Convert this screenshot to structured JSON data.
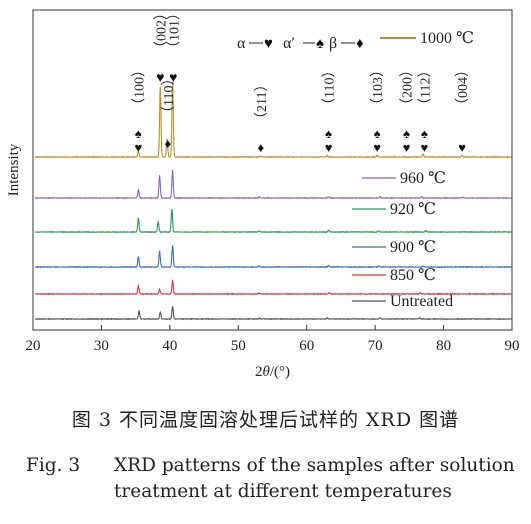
{
  "chart_data": {
    "type": "line",
    "xlabel_parts": [
      "2",
      "θ",
      "/(°)"
    ],
    "ylabel": "Intensity",
    "xlim": [
      20,
      90
    ],
    "xticks": [
      20,
      30,
      40,
      50,
      60,
      70,
      80,
      90
    ],
    "legend_symbols": [
      {
        "phase": "α",
        "marker": "♥"
      },
      {
        "phase": "α′",
        "marker": "♠"
      },
      {
        "phase": "β",
        "marker": "♦"
      }
    ],
    "series": [
      {
        "name": "Untreated",
        "color": "#555555",
        "peaks": [
          [
            35.5,
            0.35
          ],
          [
            38.6,
            0.3
          ],
          [
            40.4,
            0.55
          ],
          [
            53.1,
            0.04
          ],
          [
            63.0,
            0.05
          ],
          [
            70.7,
            0.06
          ],
          [
            76.5,
            0.04
          ]
        ]
      },
      {
        "name": "850 ℃",
        "color": "#d9363e",
        "peaks": [
          [
            35.4,
            0.35
          ],
          [
            38.5,
            0.2
          ],
          [
            40.4,
            0.6
          ],
          [
            53.0,
            0.04
          ],
          [
            63.3,
            0.06
          ],
          [
            76.6,
            0.05
          ]
        ]
      },
      {
        "name": "900 ℃",
        "color": "#3a6db5",
        "peaks": [
          [
            35.4,
            0.45
          ],
          [
            38.5,
            0.7
          ],
          [
            40.4,
            0.95
          ],
          [
            53.0,
            0.05
          ],
          [
            63.2,
            0.06
          ],
          [
            70.6,
            0.05
          ],
          [
            77.0,
            0.05
          ]
        ]
      },
      {
        "name": "920 ℃",
        "color": "#2a9a56",
        "peaks": [
          [
            35.4,
            0.6
          ],
          [
            38.3,
            0.45
          ],
          [
            40.3,
            1.0
          ],
          [
            53.0,
            0.05
          ],
          [
            63.2,
            0.07
          ],
          [
            70.5,
            0.06
          ],
          [
            77.4,
            0.07
          ]
        ]
      },
      {
        "name": "960 ℃",
        "color": "#8c64b4",
        "peaks": [
          [
            35.4,
            0.35
          ],
          [
            38.5,
            1.0
          ],
          [
            40.4,
            1.2
          ],
          [
            53.1,
            0.05
          ],
          [
            63.2,
            0.06
          ],
          [
            70.7,
            0.06
          ],
          [
            76.8,
            0.05
          ],
          [
            82.8,
            0.04
          ]
        ]
      },
      {
        "name": "1000 ℃",
        "color": "#b8912e",
        "peaks": [
          [
            35.4,
            0.22
          ],
          [
            38.6,
            2.7
          ],
          [
            39.6,
            0.7
          ],
          [
            40.4,
            2.9
          ],
          [
            53.2,
            0.03
          ],
          [
            63.0,
            0.05
          ],
          [
            70.3,
            0.06
          ],
          [
            77.0,
            0.12
          ],
          [
            82.7,
            0.06
          ]
        ]
      }
    ],
    "annotations": [
      {
        "x": 35.4,
        "markers": "♠♥",
        "label": "（100）"
      },
      {
        "x": 38.6,
        "markers": "♥",
        "label": "（002）"
      },
      {
        "x": 39.7,
        "markers": "♦",
        "label": "（110）"
      },
      {
        "x": 40.5,
        "markers": "♥",
        "label": "（101）"
      },
      {
        "x": 53.3,
        "markers": "♦",
        "label": "（211）"
      },
      {
        "x": 63.2,
        "markers": "♠♥",
        "label": "（110）"
      },
      {
        "x": 70.3,
        "markers": "♠♥",
        "label": "（103）"
      },
      {
        "x": 74.6,
        "markers": "♠♥",
        "label": "（200）"
      },
      {
        "x": 77.2,
        "markers": "♠♥",
        "label": "（112）"
      },
      {
        "x": 82.7,
        "markers": "♥",
        "label": "（004）"
      }
    ]
  },
  "caption": {
    "zh": "图 3   不同温度固溶处理后试样的 XRD 图谱",
    "en_number": "Fig. 3",
    "en_line1": "XRD patterns of the samples after solution",
    "en_line2": "treatment at different temperatures"
  }
}
